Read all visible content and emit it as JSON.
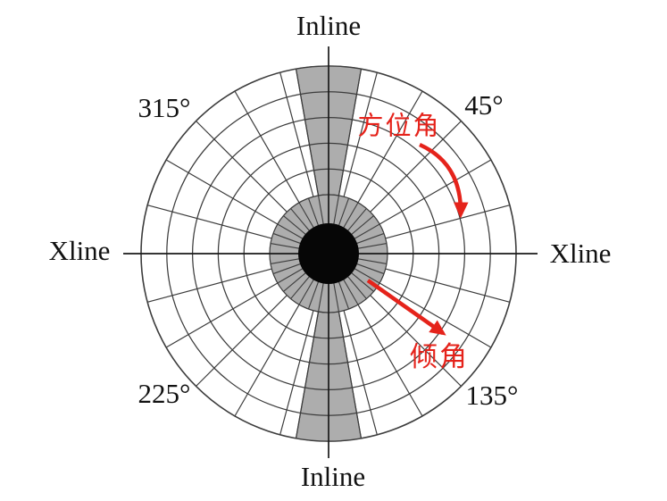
{
  "figure": {
    "axis_labels": {
      "inline_top": "Inline",
      "inline_bottom": "Inline",
      "xline_left": "Xline",
      "xline_right": "Xline"
    },
    "degree_labels": {
      "ne": "45°",
      "se": "135°",
      "sw": "225°",
      "nw": "315°"
    },
    "annotations": {
      "azimuth_label": "方位角",
      "dip_label": "倾角"
    },
    "polar_grid": {
      "sector_step_deg": 15,
      "inner_ring_spoke_step_deg": 10,
      "white_ring_band_count": 5,
      "shaded_wedge_half_angle_deg": 10,
      "shaded_wedge_azimuths_deg": [
        0,
        180
      ]
    },
    "colors": {
      "background": "#ffffff",
      "shade_gray": "#adadad",
      "grid_line": "#3c3c3c",
      "axis_black": "#1a1a1a",
      "center_fill": "#060606",
      "annotation_red": "#e5231b"
    }
  }
}
